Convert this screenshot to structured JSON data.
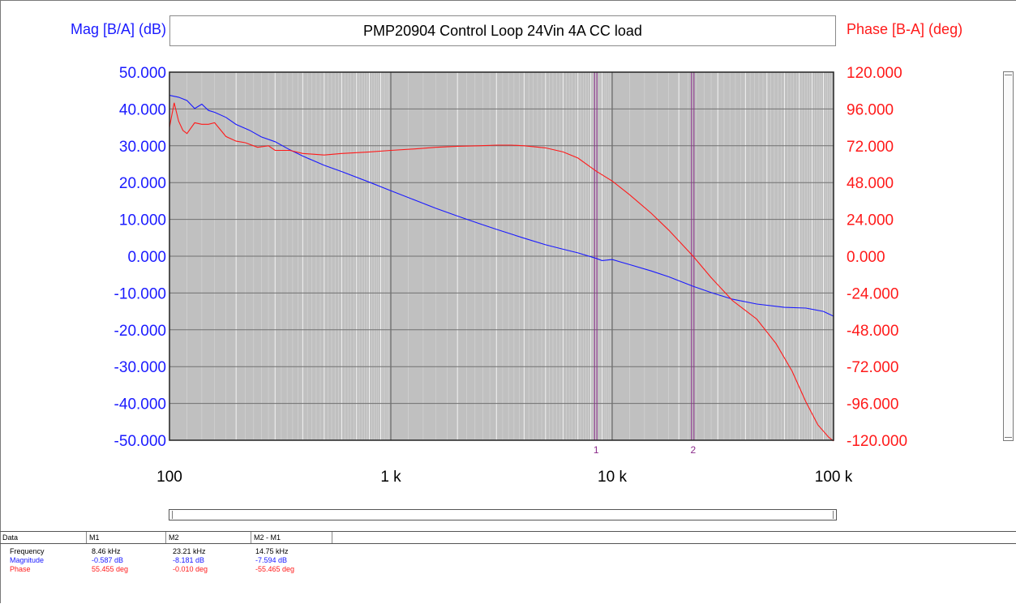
{
  "window": {
    "title": "PMP20904 Control Loop 24Vin 4A CC load",
    "left_axis_title": "Mag [B/A] (dB)",
    "right_axis_title": "Phase [B-A] (deg)"
  },
  "chart_data": {
    "type": "line",
    "title": "PMP20904 Control Loop 24Vin 4A CC load",
    "x_scale": "log",
    "xlim": [
      100,
      100000
    ],
    "x_tick_values": [
      100,
      1000,
      10000,
      100000
    ],
    "x_tick_labels": [
      "100",
      "1 k",
      "10 k",
      "100 k"
    ],
    "ylabel": "Mag [B/A] (dB)",
    "ylim": [
      -50,
      50
    ],
    "y_ticks": [
      "50.000",
      "40.000",
      "30.000",
      "20.000",
      "10.000",
      "0.000",
      "-10.000",
      "-20.000",
      "-30.000",
      "-40.000",
      "-50.000"
    ],
    "y2label": "Phase [B-A] (deg)",
    "y2lim": [
      -120,
      120
    ],
    "y2_ticks": [
      "120.000",
      "96.000",
      "72.000",
      "48.000",
      "24.000",
      "0.000",
      "-24.000",
      "-48.000",
      "-72.000",
      "-96.000",
      "-120.000"
    ],
    "grid": true,
    "background_color": "#c0c0c0",
    "series": [
      {
        "axis": "left",
        "color": "#1a1aff",
        "x": [
          100,
          110,
          120,
          130,
          140,
          150,
          160,
          180,
          200,
          230,
          260,
          300,
          350,
          400,
          500,
          600,
          800,
          1000,
          1300,
          1600,
          2000,
          2500,
          3000,
          4000,
          5000,
          6000,
          7000,
          8460,
          9000,
          10000,
          12000,
          15000,
          18000,
          23210,
          28000,
          35000,
          45000,
          60000,
          75000,
          90000,
          100000
        ],
        "values": [
          43.7,
          43.2,
          42.3,
          40.1,
          41.3,
          39.6,
          39.1,
          37.7,
          35.8,
          34.2,
          32.4,
          31.1,
          28.9,
          27.2,
          24.7,
          23.0,
          20.1,
          17.8,
          15.1,
          13.0,
          10.9,
          8.9,
          7.3,
          4.9,
          3.1,
          1.9,
          0.9,
          -0.587,
          -1.2,
          -0.9,
          -2.3,
          -4.0,
          -5.6,
          -8.181,
          -9.9,
          -11.7,
          -13.0,
          -13.9,
          -14.1,
          -15.0,
          -16.3
        ]
      },
      {
        "axis": "right",
        "color": "#ff1a1a",
        "x": [
          100,
          105,
          110,
          115,
          120,
          130,
          140,
          150,
          160,
          180,
          200,
          220,
          250,
          280,
          300,
          350,
          400,
          500,
          600,
          800,
          1000,
          1300,
          1600,
          2000,
          2500,
          3000,
          3500,
          4000,
          5000,
          6000,
          7000,
          8460,
          10000,
          12000,
          15000,
          18000,
          23210,
          28000,
          35000,
          45000,
          55000,
          65000,
          75000,
          85000,
          95000,
          100000
        ],
        "values": [
          84,
          100,
          88,
          82,
          80,
          87,
          86,
          86,
          87,
          78,
          75,
          74,
          71,
          72,
          69,
          69,
          67,
          66,
          67,
          68,
          69,
          70,
          71,
          71.7,
          72,
          72.4,
          72.4,
          72,
          70.6,
          68,
          64,
          55.455,
          49,
          40,
          28,
          17,
          -0.01,
          -14,
          -29,
          -41,
          -57,
          -75,
          -95,
          -110,
          -118,
          -122
        ]
      }
    ],
    "markers": [
      {
        "label": "1",
        "x": 8460
      },
      {
        "label": "2",
        "x": 23210
      }
    ]
  },
  "data_table": {
    "headers": [
      "Data",
      "M1",
      "M2",
      "M2 - M1"
    ],
    "rows": [
      {
        "label": "Frequency",
        "color": "#000000",
        "m1": "8.46 kHz",
        "m2": "23.21 kHz",
        "diff": "14.75 kHz"
      },
      {
        "label": "Magnitude",
        "color": "#1a1aff",
        "m1": "-0.587 dB",
        "m2": "-8.181 dB",
        "diff": "-7.594 dB"
      },
      {
        "label": "Phase",
        "color": "#ff1a1a",
        "m1": "55.455 deg",
        "m2": "-0.010 deg",
        "diff": "-55.465 deg"
      }
    ]
  }
}
